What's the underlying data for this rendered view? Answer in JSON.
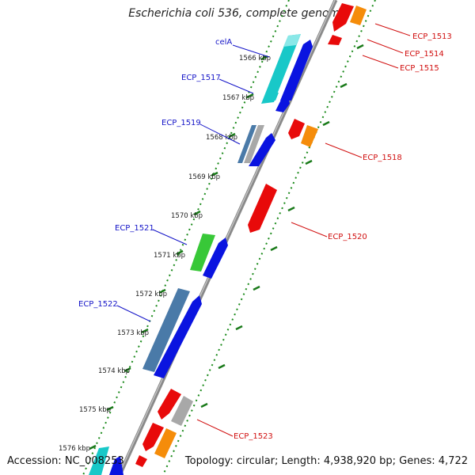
{
  "title": "Escherichia coli 536, complete genome",
  "accession": "Accession: NC_008253",
  "summary": "Topology: circular; Length: 4,938,920 bp; Genes: 4,722",
  "colors": {
    "backbone": "#8a8a8a",
    "tick_outer": "#1a8a1a",
    "label_forward": "#1515c8",
    "label_reverse": "#d11010",
    "gene_blue": "#0a14e0",
    "gene_cyan": "#18c8c8",
    "gene_steel": "#4a7aa8",
    "gene_green": "#38c838",
    "gene_gray": "#a8a8a8",
    "gene_red": "#e80a0a",
    "gene_orange": "#f58c0a",
    "gene_purple": "#7a3aa0"
  },
  "kbp_ticks": [
    "1566 kbp",
    "1567 kbp",
    "1568 kbp",
    "1569 kbp",
    "1570 kbp",
    "1571 kbp",
    "1572 kbp",
    "1573 kbp",
    "1574 kbp",
    "1575 kbp",
    "1576 kbp"
  ],
  "gene_labels_forward": [
    "celA",
    "ECP_1517",
    "ECP_1519",
    "ECP_1521",
    "ECP_1522"
  ],
  "gene_labels_reverse": [
    "ECP_1513",
    "ECP_1514",
    "ECP_1515",
    "ECP_1518",
    "ECP_1520",
    "ECP_1523"
  ]
}
